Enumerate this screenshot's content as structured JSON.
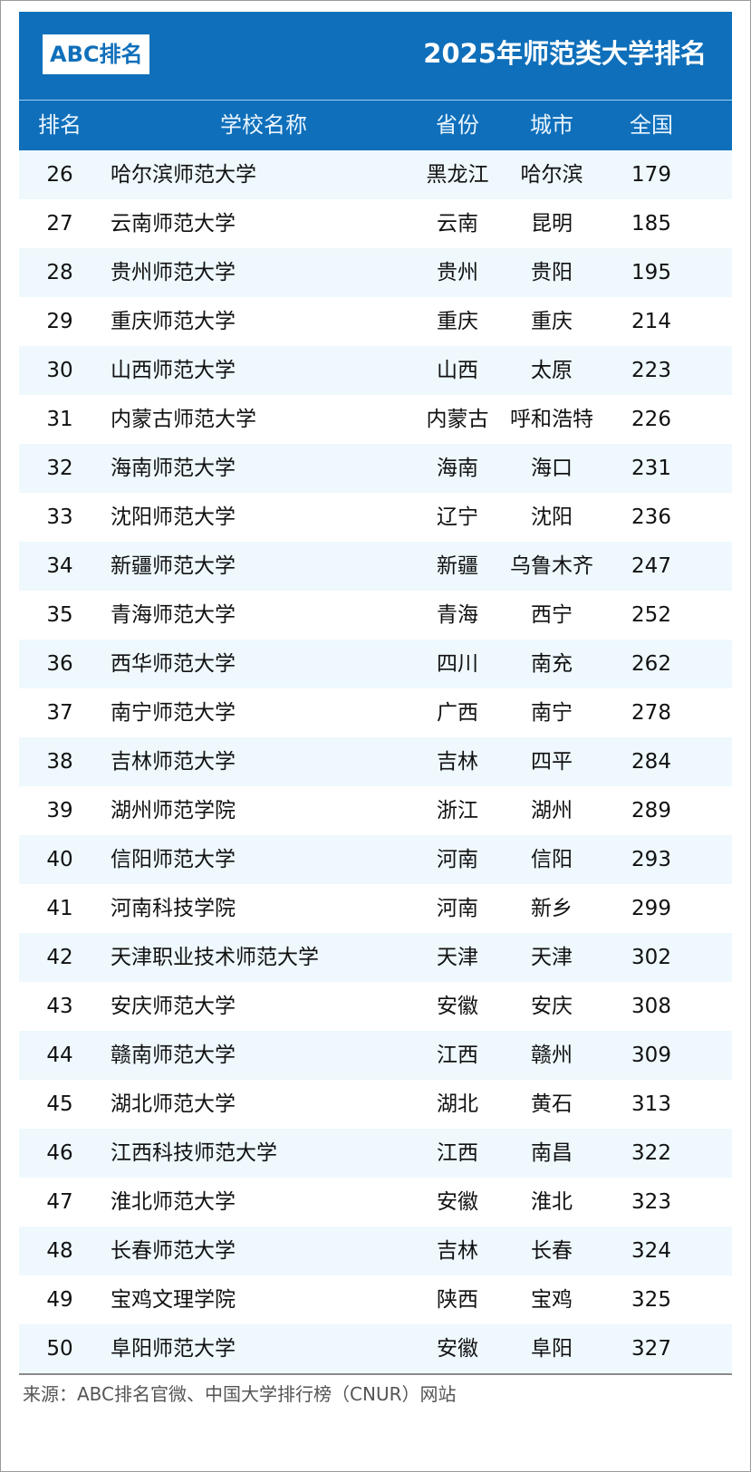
{
  "header": {
    "logo": "ABC排名",
    "title": "2025年师范类大学排名"
  },
  "colors": {
    "accent": "#0f6fba",
    "row_alt": "#eef8fd"
  },
  "table": {
    "columns": [
      "排名",
      "学校名称",
      "省份",
      "城市",
      "全国"
    ],
    "rows": [
      [
        "26",
        "哈尔滨师范大学",
        "黑龙江",
        "哈尔滨",
        "179"
      ],
      [
        "27",
        "云南师范大学",
        "云南",
        "昆明",
        "185"
      ],
      [
        "28",
        "贵州师范大学",
        "贵州",
        "贵阳",
        "195"
      ],
      [
        "29",
        "重庆师范大学",
        "重庆",
        "重庆",
        "214"
      ],
      [
        "30",
        "山西师范大学",
        "山西",
        "太原",
        "223"
      ],
      [
        "31",
        "内蒙古师范大学",
        "内蒙古",
        "呼和浩特",
        "226"
      ],
      [
        "32",
        "海南师范大学",
        "海南",
        "海口",
        "231"
      ],
      [
        "33",
        "沈阳师范大学",
        "辽宁",
        "沈阳",
        "236"
      ],
      [
        "34",
        "新疆师范大学",
        "新疆",
        "乌鲁木齐",
        "247"
      ],
      [
        "35",
        "青海师范大学",
        "青海",
        "西宁",
        "252"
      ],
      [
        "36",
        "西华师范大学",
        "四川",
        "南充",
        "262"
      ],
      [
        "37",
        "南宁师范大学",
        "广西",
        "南宁",
        "278"
      ],
      [
        "38",
        "吉林师范大学",
        "吉林",
        "四平",
        "284"
      ],
      [
        "39",
        "湖州师范学院",
        "浙江",
        "湖州",
        "289"
      ],
      [
        "40",
        "信阳师范大学",
        "河南",
        "信阳",
        "293"
      ],
      [
        "41",
        "河南科技学院",
        "河南",
        "新乡",
        "299"
      ],
      [
        "42",
        "天津职业技术师范大学",
        "天津",
        "天津",
        "302"
      ],
      [
        "43",
        "安庆师范大学",
        "安徽",
        "安庆",
        "308"
      ],
      [
        "44",
        "赣南师范大学",
        "江西",
        "赣州",
        "309"
      ],
      [
        "45",
        "湖北师范大学",
        "湖北",
        "黄石",
        "313"
      ],
      [
        "46",
        "江西科技师范大学",
        "江西",
        "南昌",
        "322"
      ],
      [
        "47",
        "淮北师范大学",
        "安徽",
        "淮北",
        "323"
      ],
      [
        "48",
        "长春师范大学",
        "吉林",
        "长春",
        "324"
      ],
      [
        "49",
        "宝鸡文理学院",
        "陕西",
        "宝鸡",
        "325"
      ],
      [
        "50",
        "阜阳师范大学",
        "安徽",
        "阜阳",
        "327"
      ]
    ]
  },
  "footer": {
    "source": "来源：ABC排名官微、中国大学排行榜（CNUR）网站"
  }
}
